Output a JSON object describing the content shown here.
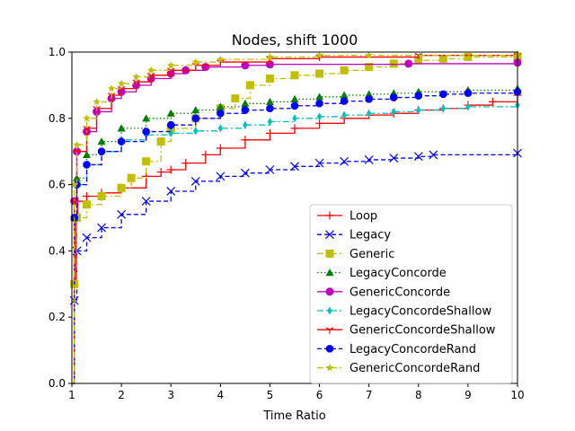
{
  "chart_data": {
    "type": "line",
    "title": "Nodes, shift 1000",
    "xlabel": "Time Ratio",
    "ylabel": "",
    "xlim": [
      1,
      10
    ],
    "ylim": [
      0,
      1
    ],
    "xticks": [
      "1",
      "2",
      "3",
      "4",
      "5",
      "6",
      "7",
      "8",
      "9",
      "10"
    ],
    "yticks": [
      "0.0",
      "0.2",
      "0.4",
      "0.6",
      "0.8",
      "1.0"
    ],
    "grid": false,
    "legend_position": "lower-right",
    "series": [
      {
        "name": "Loop",
        "color": "#ff0000",
        "linestyle": "solid",
        "marker": "plus",
        "points": [
          [
            1.02,
            0.0
          ],
          [
            1.05,
            0.3
          ],
          [
            1.08,
            0.5
          ],
          [
            1.12,
            0.55
          ],
          [
            1.3,
            0.565
          ],
          [
            1.6,
            0.575
          ],
          [
            2.0,
            0.59
          ],
          [
            2.5,
            0.625
          ],
          [
            2.8,
            0.638
          ],
          [
            3.0,
            0.645
          ],
          [
            3.3,
            0.665
          ],
          [
            3.7,
            0.69
          ],
          [
            4.0,
            0.71
          ],
          [
            4.5,
            0.735
          ],
          [
            5.0,
            0.755
          ],
          [
            5.5,
            0.77
          ],
          [
            6.0,
            0.785
          ],
          [
            6.5,
            0.8
          ],
          [
            7.0,
            0.81
          ],
          [
            7.5,
            0.815
          ],
          [
            8.0,
            0.825
          ],
          [
            8.5,
            0.83
          ],
          [
            9.0,
            0.84
          ],
          [
            9.5,
            0.85
          ],
          [
            10.0,
            0.87
          ]
        ]
      },
      {
        "name": "Legacy",
        "color": "#0000ff",
        "linestyle": "dashed",
        "marker": "x",
        "points": [
          [
            1.02,
            0.0
          ],
          [
            1.05,
            0.25
          ],
          [
            1.1,
            0.4
          ],
          [
            1.3,
            0.44
          ],
          [
            1.6,
            0.47
          ],
          [
            2.0,
            0.51
          ],
          [
            2.5,
            0.55
          ],
          [
            3.0,
            0.58
          ],
          [
            3.5,
            0.61
          ],
          [
            4.0,
            0.625
          ],
          [
            4.5,
            0.635
          ],
          [
            5.0,
            0.645
          ],
          [
            5.5,
            0.655
          ],
          [
            6.0,
            0.665
          ],
          [
            6.5,
            0.67
          ],
          [
            7.0,
            0.675
          ],
          [
            7.5,
            0.68
          ],
          [
            8.0,
            0.685
          ],
          [
            8.3,
            0.69
          ],
          [
            10.0,
            0.695
          ]
        ]
      },
      {
        "name": "Generic",
        "color": "#bfbf00",
        "linestyle": "dashdot",
        "marker": "square",
        "points": [
          [
            1.02,
            0.0
          ],
          [
            1.05,
            0.3
          ],
          [
            1.1,
            0.5
          ],
          [
            1.3,
            0.54
          ],
          [
            1.6,
            0.565
          ],
          [
            2.0,
            0.59
          ],
          [
            2.2,
            0.62
          ],
          [
            2.5,
            0.67
          ],
          [
            2.8,
            0.73
          ],
          [
            3.0,
            0.77
          ],
          [
            3.5,
            0.8
          ],
          [
            4.0,
            0.83
          ],
          [
            4.3,
            0.86
          ],
          [
            4.6,
            0.9
          ],
          [
            5.0,
            0.92
          ],
          [
            5.5,
            0.93
          ],
          [
            6.0,
            0.935
          ],
          [
            6.5,
            0.945
          ],
          [
            7.0,
            0.955
          ],
          [
            7.5,
            0.965
          ],
          [
            8.0,
            0.975
          ],
          [
            8.5,
            0.98
          ],
          [
            9.0,
            0.985
          ],
          [
            10.0,
            0.985
          ]
        ]
      },
      {
        "name": "LegacyConcorde",
        "color": "#007f00",
        "linestyle": "dotted",
        "marker": "triangle",
        "points": [
          [
            1.02,
            0.0
          ],
          [
            1.05,
            0.5
          ],
          [
            1.1,
            0.62
          ],
          [
            1.3,
            0.69
          ],
          [
            1.6,
            0.73
          ],
          [
            2.0,
            0.77
          ],
          [
            2.5,
            0.8
          ],
          [
            3.0,
            0.815
          ],
          [
            3.5,
            0.825
          ],
          [
            4.0,
            0.835
          ],
          [
            4.5,
            0.845
          ],
          [
            5.0,
            0.85
          ],
          [
            5.5,
            0.858
          ],
          [
            6.0,
            0.865
          ],
          [
            6.5,
            0.87
          ],
          [
            7.0,
            0.873
          ],
          [
            7.5,
            0.876
          ],
          [
            8.0,
            0.88
          ],
          [
            9.0,
            0.885
          ],
          [
            10.0,
            0.89
          ]
        ]
      },
      {
        "name": "GenericConcorde",
        "color": "#bf00bf",
        "linestyle": "solid",
        "marker": "circle",
        "points": [
          [
            1.02,
            0.0
          ],
          [
            1.05,
            0.55
          ],
          [
            1.1,
            0.7
          ],
          [
            1.3,
            0.76
          ],
          [
            1.5,
            0.82
          ],
          [
            1.8,
            0.86
          ],
          [
            2.0,
            0.88
          ],
          [
            2.3,
            0.9
          ],
          [
            2.6,
            0.92
          ],
          [
            3.0,
            0.935
          ],
          [
            3.3,
            0.945
          ],
          [
            3.7,
            0.955
          ],
          [
            4.5,
            0.96
          ],
          [
            5.0,
            0.963
          ],
          [
            7.8,
            0.965
          ],
          [
            10.0,
            0.968
          ]
        ]
      },
      {
        "name": "LegacyConcordeShallow",
        "color": "#00bfbf",
        "linestyle": "dashdot",
        "marker": "thin_diamond",
        "points": [
          [
            1.02,
            0.0
          ],
          [
            1.05,
            0.5
          ],
          [
            1.1,
            0.6
          ],
          [
            1.3,
            0.66
          ],
          [
            1.6,
            0.7
          ],
          [
            2.0,
            0.735
          ],
          [
            2.5,
            0.75
          ],
          [
            3.0,
            0.755
          ],
          [
            3.5,
            0.762
          ],
          [
            4.0,
            0.77
          ],
          [
            4.5,
            0.78
          ],
          [
            5.0,
            0.79
          ],
          [
            5.5,
            0.8
          ],
          [
            6.0,
            0.805
          ],
          [
            6.5,
            0.81
          ],
          [
            7.0,
            0.815
          ],
          [
            7.5,
            0.82
          ],
          [
            8.0,
            0.825
          ],
          [
            8.5,
            0.83
          ],
          [
            9.0,
            0.835
          ],
          [
            10.0,
            0.84
          ]
        ]
      },
      {
        "name": "GenericConcordeShallow",
        "color": "#ff0000",
        "linestyle": "solid",
        "marker": "tri_down",
        "points": [
          [
            1.02,
            0.0
          ],
          [
            1.05,
            0.55
          ],
          [
            1.1,
            0.7
          ],
          [
            1.3,
            0.77
          ],
          [
            1.5,
            0.83
          ],
          [
            1.8,
            0.87
          ],
          [
            2.0,
            0.89
          ],
          [
            2.3,
            0.91
          ],
          [
            2.6,
            0.93
          ],
          [
            3.0,
            0.945
          ],
          [
            3.5,
            0.96
          ],
          [
            4.0,
            0.97
          ],
          [
            5.0,
            0.98
          ],
          [
            6.0,
            0.985
          ],
          [
            8.0,
            0.99
          ],
          [
            10.0,
            0.99
          ]
        ]
      },
      {
        "name": "LegacyConcordeRand",
        "color": "#0000ff",
        "linestyle": "dashed",
        "marker": "octagon",
        "points": [
          [
            1.02,
            0.0
          ],
          [
            1.05,
            0.5
          ],
          [
            1.1,
            0.6
          ],
          [
            1.3,
            0.66
          ],
          [
            1.6,
            0.7
          ],
          [
            2.0,
            0.73
          ],
          [
            2.5,
            0.76
          ],
          [
            3.0,
            0.78
          ],
          [
            3.5,
            0.8
          ],
          [
            4.0,
            0.815
          ],
          [
            4.5,
            0.825
          ],
          [
            5.0,
            0.83
          ],
          [
            5.5,
            0.838
          ],
          [
            6.0,
            0.845
          ],
          [
            6.5,
            0.852
          ],
          [
            7.0,
            0.858
          ],
          [
            7.5,
            0.863
          ],
          [
            8.0,
            0.868
          ],
          [
            8.5,
            0.873
          ],
          [
            9.0,
            0.876
          ],
          [
            10.0,
            0.88
          ]
        ]
      },
      {
        "name": "GenericConcordeRand",
        "color": "#bfbf00",
        "linestyle": "dashdot",
        "marker": "star",
        "points": [
          [
            1.02,
            0.0
          ],
          [
            1.05,
            0.6
          ],
          [
            1.1,
            0.72
          ],
          [
            1.3,
            0.8
          ],
          [
            1.5,
            0.85
          ],
          [
            1.8,
            0.89
          ],
          [
            2.0,
            0.905
          ],
          [
            2.3,
            0.925
          ],
          [
            2.6,
            0.945
          ],
          [
            3.0,
            0.96
          ],
          [
            3.5,
            0.97
          ],
          [
            4.0,
            0.978
          ],
          [
            5.0,
            0.985
          ],
          [
            6.0,
            0.99
          ],
          [
            7.0,
            0.99
          ],
          [
            10.0,
            0.995
          ]
        ]
      }
    ]
  }
}
